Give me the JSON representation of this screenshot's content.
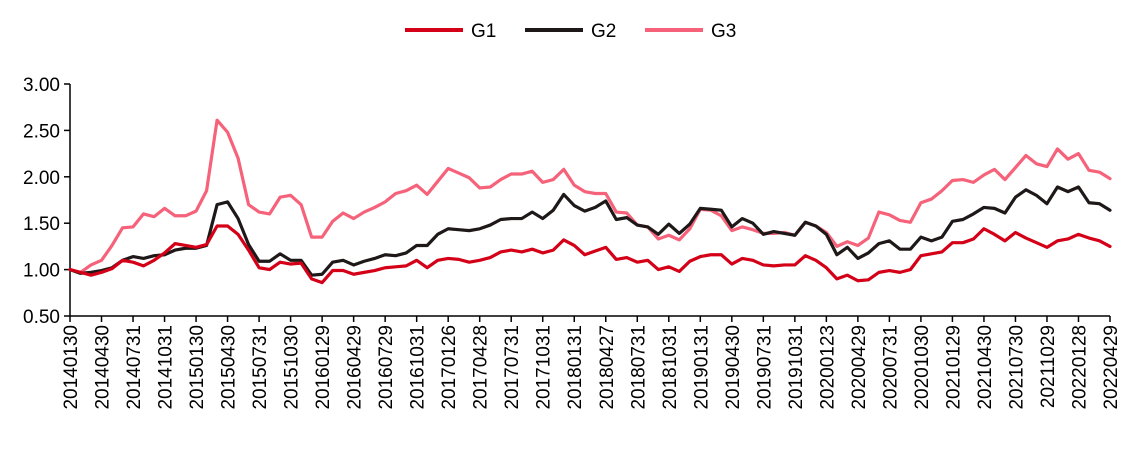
{
  "chart_data": {
    "type": "line",
    "title": "",
    "xlabel": "",
    "ylabel": "",
    "ylim": [
      0.5,
      3.0
    ],
    "yticks": [
      "0.50",
      "1.00",
      "1.50",
      "2.00",
      "2.50",
      "3.00"
    ],
    "ytick_values": [
      0.5,
      1.0,
      1.5,
      2.0,
      2.5,
      3.0
    ],
    "grid": false,
    "legend_position": "top-center",
    "xtick_labels": [
      "20140130",
      "20140430",
      "20140731",
      "20141031",
      "20150130",
      "20150430",
      "20150731",
      "20151030",
      "20160129",
      "20160429",
      "20160729",
      "20161031",
      "20170126",
      "20170428",
      "20170731",
      "20171031",
      "20180131",
      "20180427",
      "20180731",
      "20181031",
      "20190131",
      "20190430",
      "20190731",
      "20191031",
      "20200123",
      "20200429",
      "20200731",
      "20201030",
      "20210129",
      "20210430",
      "20210730",
      "20211029",
      "20220128",
      "20220429"
    ],
    "x": [
      "20140130",
      "20140228",
      "20140331",
      "20140430",
      "20140530",
      "20140630",
      "20140731",
      "20140829",
      "20140930",
      "20141031",
      "20141128",
      "20141231",
      "20150130",
      "20150227",
      "20150331",
      "20150430",
      "20150529",
      "20150630",
      "20150731",
      "20150831",
      "20150930",
      "20151030",
      "20151130",
      "20151231",
      "20160129",
      "20160229",
      "20160331",
      "20160429",
      "20160531",
      "20160630",
      "20160729",
      "20160831",
      "20160930",
      "20161031",
      "20161130",
      "20161230",
      "20170126",
      "20170228",
      "20170331",
      "20170428",
      "20170531",
      "20170630",
      "20170731",
      "20170831",
      "20170929",
      "20171031",
      "20171130",
      "20171229",
      "20180131",
      "20180228",
      "20180330",
      "20180427",
      "20180531",
      "20180629",
      "20180731",
      "20180831",
      "20180928",
      "20181031",
      "20181130",
      "20181228",
      "20190131",
      "20190228",
      "20190329",
      "20190430",
      "20190531",
      "20190628",
      "20190731",
      "20190830",
      "20190930",
      "20191031",
      "20191129",
      "20191231",
      "20200123",
      "20200228",
      "20200331",
      "20200429",
      "20200529",
      "20200630",
      "20200731",
      "20200831",
      "20200930",
      "20201030",
      "20201130",
      "20201231",
      "20210129",
      "20210226",
      "20210331",
      "20210430",
      "20210531",
      "20210630",
      "20210730",
      "20210831",
      "20210930",
      "20211029",
      "20211130",
      "20211231",
      "20220128",
      "20220228",
      "20220331",
      "20220429"
    ],
    "series": [
      {
        "name": "G1",
        "color": "#d40018",
        "values": [
          1.0,
          0.97,
          0.94,
          0.97,
          1.01,
          1.1,
          1.08,
          1.04,
          1.1,
          1.18,
          1.28,
          1.26,
          1.24,
          1.27,
          1.47,
          1.47,
          1.38,
          1.21,
          1.02,
          1.0,
          1.08,
          1.06,
          1.07,
          0.9,
          0.86,
          0.99,
          0.99,
          0.95,
          0.97,
          0.99,
          1.02,
          1.03,
          1.04,
          1.1,
          1.02,
          1.1,
          1.12,
          1.11,
          1.08,
          1.1,
          1.13,
          1.19,
          1.21,
          1.19,
          1.22,
          1.18,
          1.21,
          1.32,
          1.26,
          1.16,
          1.2,
          1.24,
          1.11,
          1.13,
          1.08,
          1.1,
          1.0,
          1.03,
          0.98,
          1.09,
          1.14,
          1.16,
          1.16,
          1.06,
          1.12,
          1.1,
          1.05,
          1.04,
          1.05,
          1.05,
          1.15,
          1.1,
          1.02,
          0.9,
          0.94,
          0.88,
          0.89,
          0.97,
          0.99,
          0.97,
          1.0,
          1.15,
          1.17,
          1.19,
          1.29,
          1.29,
          1.33,
          1.44,
          1.38,
          1.31,
          1.4,
          1.34,
          1.29,
          1.24,
          1.31,
          1.33,
          1.38,
          1.34,
          1.31,
          1.25
        ]
      },
      {
        "name": "G2",
        "color": "#1e1818",
        "values": [
          1.0,
          0.96,
          0.97,
          0.99,
          1.02,
          1.1,
          1.14,
          1.12,
          1.15,
          1.16,
          1.21,
          1.23,
          1.23,
          1.26,
          1.7,
          1.73,
          1.55,
          1.27,
          1.09,
          1.09,
          1.17,
          1.1,
          1.1,
          0.94,
          0.95,
          1.08,
          1.1,
          1.05,
          1.09,
          1.12,
          1.16,
          1.15,
          1.18,
          1.26,
          1.26,
          1.38,
          1.44,
          1.43,
          1.42,
          1.44,
          1.48,
          1.54,
          1.55,
          1.55,
          1.62,
          1.55,
          1.64,
          1.81,
          1.69,
          1.63,
          1.67,
          1.74,
          1.54,
          1.56,
          1.48,
          1.46,
          1.38,
          1.49,
          1.39,
          1.49,
          1.66,
          1.65,
          1.64,
          1.46,
          1.55,
          1.5,
          1.38,
          1.41,
          1.39,
          1.37,
          1.51,
          1.47,
          1.38,
          1.16,
          1.24,
          1.12,
          1.18,
          1.28,
          1.31,
          1.22,
          1.22,
          1.35,
          1.31,
          1.35,
          1.52,
          1.54,
          1.6,
          1.67,
          1.66,
          1.61,
          1.78,
          1.86,
          1.8,
          1.71,
          1.89,
          1.84,
          1.89,
          1.72,
          1.71,
          1.64
        ]
      },
      {
        "name": "G3",
        "color": "#f5627a",
        "values": [
          1.0,
          0.97,
          1.05,
          1.1,
          1.26,
          1.45,
          1.46,
          1.6,
          1.57,
          1.66,
          1.58,
          1.58,
          1.63,
          1.85,
          2.61,
          2.48,
          2.2,
          1.7,
          1.62,
          1.6,
          1.78,
          1.8,
          1.7,
          1.35,
          1.35,
          1.52,
          1.61,
          1.55,
          1.62,
          1.67,
          1.73,
          1.82,
          1.85,
          1.91,
          1.81,
          1.95,
          2.09,
          2.04,
          1.99,
          1.88,
          1.89,
          1.97,
          2.03,
          2.03,
          2.06,
          1.94,
          1.97,
          2.08,
          1.91,
          1.84,
          1.82,
          1.82,
          1.62,
          1.61,
          1.48,
          1.46,
          1.33,
          1.37,
          1.32,
          1.44,
          1.65,
          1.64,
          1.58,
          1.42,
          1.46,
          1.43,
          1.39,
          1.39,
          1.4,
          1.37,
          1.51,
          1.47,
          1.4,
          1.25,
          1.3,
          1.26,
          1.34,
          1.62,
          1.59,
          1.53,
          1.51,
          1.72,
          1.76,
          1.85,
          1.96,
          1.97,
          1.94,
          2.02,
          2.08,
          1.97,
          2.1,
          2.23,
          2.14,
          2.11,
          2.3,
          2.19,
          2.25,
          2.07,
          2.05,
          1.98
        ]
      }
    ]
  }
}
